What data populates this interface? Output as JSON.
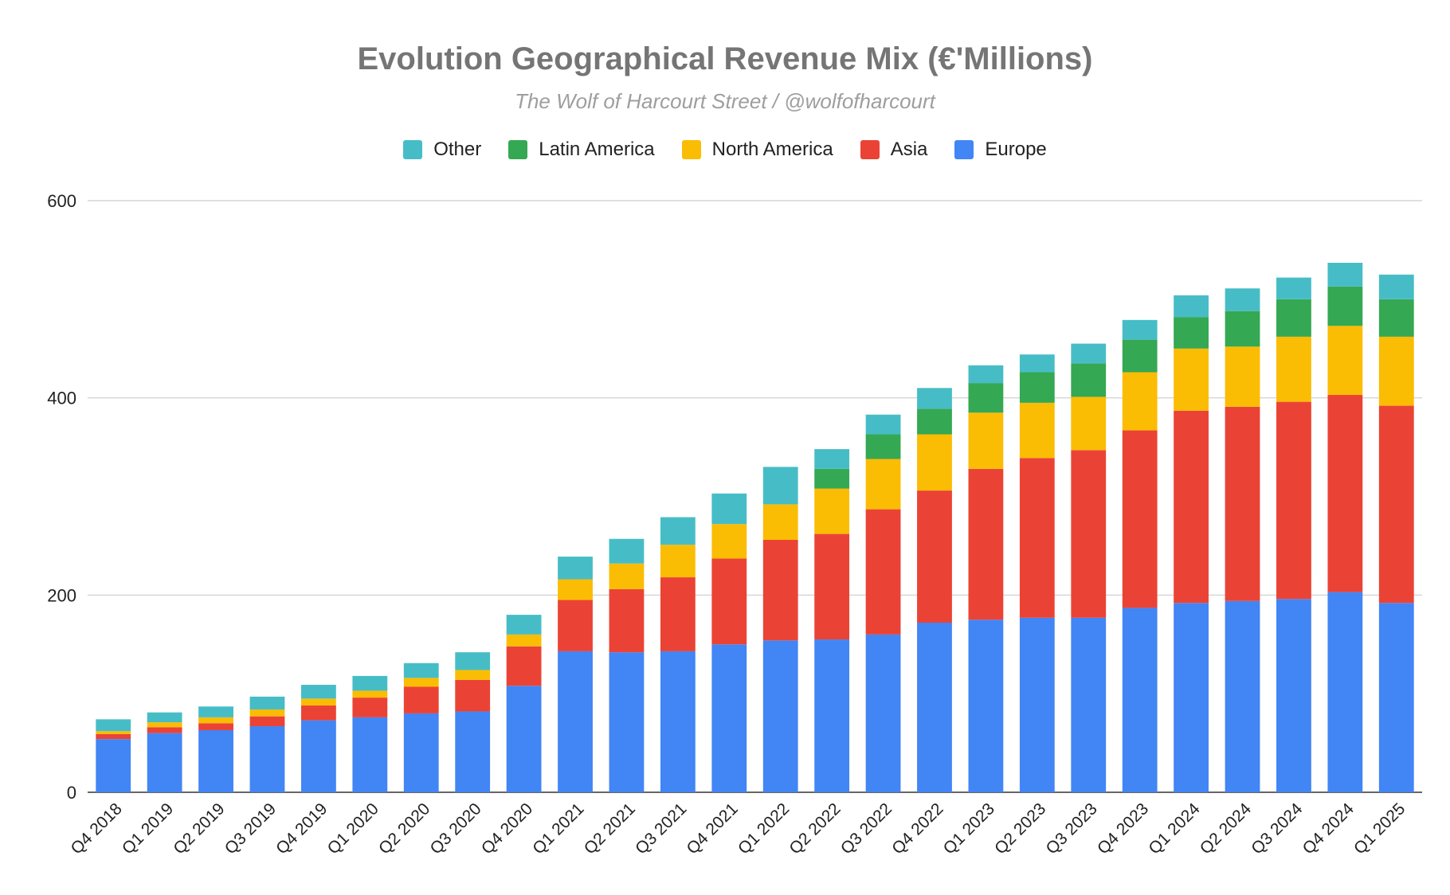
{
  "chart_data": {
    "type": "bar",
    "stacked": true,
    "title": "Evolution Geographical Revenue Mix (€'Millions)",
    "subtitle": "The Wolf of Harcourt Street / @wolfofharcourt",
    "xlabel": "",
    "ylabel": "",
    "ylim": [
      0,
      600
    ],
    "yticks": [
      0,
      200,
      400,
      600
    ],
    "grid": true,
    "legend_position": "top",
    "legend_order": [
      "Other",
      "Latin America",
      "North America",
      "Asia",
      "Europe"
    ],
    "categories": [
      "Q4 2018",
      "Q1 2019",
      "Q2 2019",
      "Q3 2019",
      "Q4 2019",
      "Q1 2020",
      "Q2 2020",
      "Q3 2020",
      "Q4 2020",
      "Q1 2021",
      "Q2 2021",
      "Q3 2021",
      "Q4 2021",
      "Q1 2022",
      "Q2 2022",
      "Q3 2022",
      "Q4 2022",
      "Q1 2023",
      "Q2 2023",
      "Q3 2023",
      "Q4 2023",
      "Q1 2024",
      "Q2 2024",
      "Q3 2024",
      "Q4 2024",
      "Q1 2025"
    ],
    "series": [
      {
        "name": "Europe",
        "color": "#4285f4",
        "values": [
          54,
          60,
          63,
          67,
          73,
          76,
          80,
          82,
          108,
          143,
          142,
          143,
          150,
          154,
          155,
          160,
          172,
          175,
          177,
          177,
          187,
          192,
          194,
          196,
          203,
          192
        ]
      },
      {
        "name": "Asia",
        "color": "#ea4335",
        "values": [
          5,
          6,
          7,
          10,
          15,
          20,
          27,
          32,
          40,
          52,
          64,
          75,
          87,
          102,
          107,
          127,
          134,
          153,
          162,
          170,
          180,
          195,
          197,
          200,
          200,
          200
        ]
      },
      {
        "name": "North America",
        "color": "#fbbc04",
        "values": [
          3,
          5,
          6,
          7,
          7,
          7,
          9,
          10,
          12,
          21,
          26,
          33,
          35,
          36,
          46,
          51,
          57,
          57,
          56,
          54,
          59,
          63,
          61,
          66,
          70,
          70
        ]
      },
      {
        "name": "Latin America",
        "color": "#34a853",
        "values": [
          0,
          0,
          0,
          0,
          0,
          0,
          0,
          0,
          0,
          0,
          0,
          0,
          0,
          0,
          20,
          25,
          26,
          30,
          31,
          34,
          33,
          32,
          36,
          38,
          40,
          38
        ]
      },
      {
        "name": "Other",
        "color": "#46bdc6",
        "values": [
          12,
          10,
          11,
          13,
          14,
          15,
          15,
          18,
          20,
          23,
          25,
          28,
          31,
          38,
          20,
          20,
          21,
          18,
          18,
          20,
          20,
          22,
          23,
          22,
          24,
          25
        ]
      }
    ]
  }
}
